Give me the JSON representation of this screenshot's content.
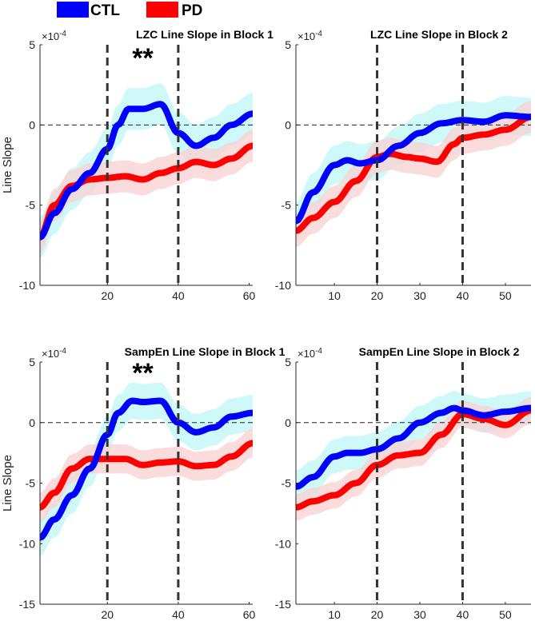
{
  "legend": {
    "entries": [
      {
        "label": "CTL",
        "color": "#0000ff"
      },
      {
        "label": "PD",
        "color": "#ff0000"
      }
    ]
  },
  "colors": {
    "ctl_line": "#0000ff",
    "pd_line": "#ff0000",
    "ctl_band": "#bff7f7",
    "pd_band": "#f9d0d0",
    "vline": "#333333",
    "zero_line": "#222222"
  },
  "chart_data": [
    {
      "type": "line",
      "title": "LZC Line Slope in Block 1",
      "exponent_label": "×10",
      "exponent_sup": "-4",
      "ylabel": "Line Slope",
      "xlabel": "",
      "xlim": [
        1,
        61
      ],
      "ylim": [
        -10,
        5
      ],
      "xticks": [
        20,
        40,
        60
      ],
      "yticks": [
        5,
        0,
        -5,
        -10
      ],
      "vlines": [
        20,
        40
      ],
      "hline": 0,
      "annotation": {
        "text": "**",
        "x": 30,
        "y": 4.4
      },
      "series": [
        {
          "name": "CTL",
          "x": [
            1,
            5,
            10,
            15,
            20,
            23,
            26,
            30,
            35,
            40,
            45,
            50,
            55,
            61
          ],
          "values": [
            -7,
            -5.5,
            -4,
            -3,
            -1.5,
            0,
            1,
            1,
            1.3,
            -0.5,
            -1.3,
            -0.8,
            0,
            0.7
          ],
          "sem": 1.3
        },
        {
          "name": "PD",
          "x": [
            1,
            5,
            10,
            15,
            20,
            25,
            30,
            35,
            40,
            45,
            50,
            55,
            61
          ],
          "values": [
            -7,
            -5,
            -3.8,
            -3.4,
            -3.3,
            -3.2,
            -3.4,
            -3,
            -2.7,
            -2.3,
            -2.5,
            -2.1,
            -1.3
          ],
          "sem": 1.0
        }
      ]
    },
    {
      "type": "line",
      "title": "LZC Line Slope in Block 2",
      "exponent_label": "×10",
      "exponent_sup": "-4",
      "ylabel": "",
      "xlabel": "",
      "xlim": [
        1,
        56
      ],
      "ylim": [
        -10,
        5
      ],
      "xticks": [
        10,
        20,
        30,
        40,
        50
      ],
      "yticks": [
        5,
        0,
        -5,
        -10
      ],
      "vlines": [
        20,
        40
      ],
      "hline": 0,
      "series": [
        {
          "name": "CTL",
          "x": [
            1,
            5,
            10,
            13,
            16,
            20,
            25,
            30,
            35,
            40,
            45,
            50,
            56
          ],
          "values": [
            -6,
            -4.2,
            -2.5,
            -2.2,
            -2.4,
            -2.2,
            -1.3,
            -0.5,
            0.1,
            0.3,
            0.2,
            0.6,
            0.5
          ],
          "sem": 1.2
        },
        {
          "name": "PD",
          "x": [
            1,
            5,
            10,
            15,
            20,
            23,
            27,
            30,
            34,
            38,
            40,
            45,
            50,
            56
          ],
          "values": [
            -6.6,
            -5.8,
            -4.8,
            -3.5,
            -2,
            -1.8,
            -2,
            -2.1,
            -2.3,
            -1.2,
            -0.8,
            -0.6,
            -0.3,
            0.5
          ],
          "sem": 1.0
        }
      ]
    },
    {
      "type": "line",
      "title": "SampEn Line Slope in Block 1",
      "exponent_label": "×10",
      "exponent_sup": "-4",
      "ylabel": "Line Slope",
      "xlabel": "",
      "xlim": [
        1,
        61
      ],
      "ylim": [
        -15,
        5
      ],
      "xticks": [
        20,
        40,
        60
      ],
      "yticks": [
        5,
        0,
        -5,
        -10,
        -15
      ],
      "vlines": [
        20,
        40
      ],
      "hline": 0,
      "annotation": {
        "text": "**",
        "x": 30,
        "y": 4.4
      },
      "series": [
        {
          "name": "CTL",
          "x": [
            1,
            5,
            10,
            15,
            20,
            23,
            27,
            30,
            35,
            40,
            45,
            50,
            55,
            61
          ],
          "values": [
            -9.5,
            -8,
            -6,
            -3.8,
            -1,
            0.8,
            1.8,
            1.7,
            1.8,
            0,
            -0.8,
            -0.4,
            0.5,
            0.8
          ],
          "sem": 1.5
        },
        {
          "name": "PD",
          "x": [
            1,
            5,
            10,
            15,
            20,
            25,
            30,
            35,
            40,
            45,
            50,
            55,
            61
          ],
          "values": [
            -7,
            -5.8,
            -3.8,
            -3,
            -3,
            -3,
            -3.5,
            -3.3,
            -3.2,
            -3.6,
            -3.5,
            -2.8,
            -1.7
          ],
          "sem": 1.2
        }
      ]
    },
    {
      "type": "line",
      "title": "SampEn Line Slope in Block 2",
      "exponent_label": "×10",
      "exponent_sup": "-4",
      "ylabel": "",
      "xlabel": "",
      "xlim": [
        1,
        56
      ],
      "ylim": [
        -15,
        5
      ],
      "xticks": [
        10,
        20,
        30,
        40,
        50
      ],
      "yticks": [
        5,
        0,
        -5,
        -10,
        -15
      ],
      "vlines": [
        20,
        40
      ],
      "hline": 0,
      "series": [
        {
          "name": "CTL",
          "x": [
            1,
            5,
            10,
            13,
            16,
            20,
            25,
            30,
            35,
            38,
            40,
            45,
            50,
            56
          ],
          "values": [
            -5.3,
            -4.5,
            -2.8,
            -2.5,
            -2.5,
            -2.2,
            -1.3,
            0,
            0.8,
            1.2,
            1,
            0.6,
            0.9,
            1.2
          ],
          "sem": 1.4
        },
        {
          "name": "PD",
          "x": [
            1,
            5,
            10,
            15,
            20,
            25,
            30,
            35,
            40,
            45,
            50,
            56
          ],
          "values": [
            -7,
            -6.5,
            -6,
            -5,
            -3.5,
            -2.7,
            -2.5,
            -1,
            0.7,
            0.3,
            -0.2,
            1
          ],
          "sem": 1.1
        }
      ]
    }
  ]
}
